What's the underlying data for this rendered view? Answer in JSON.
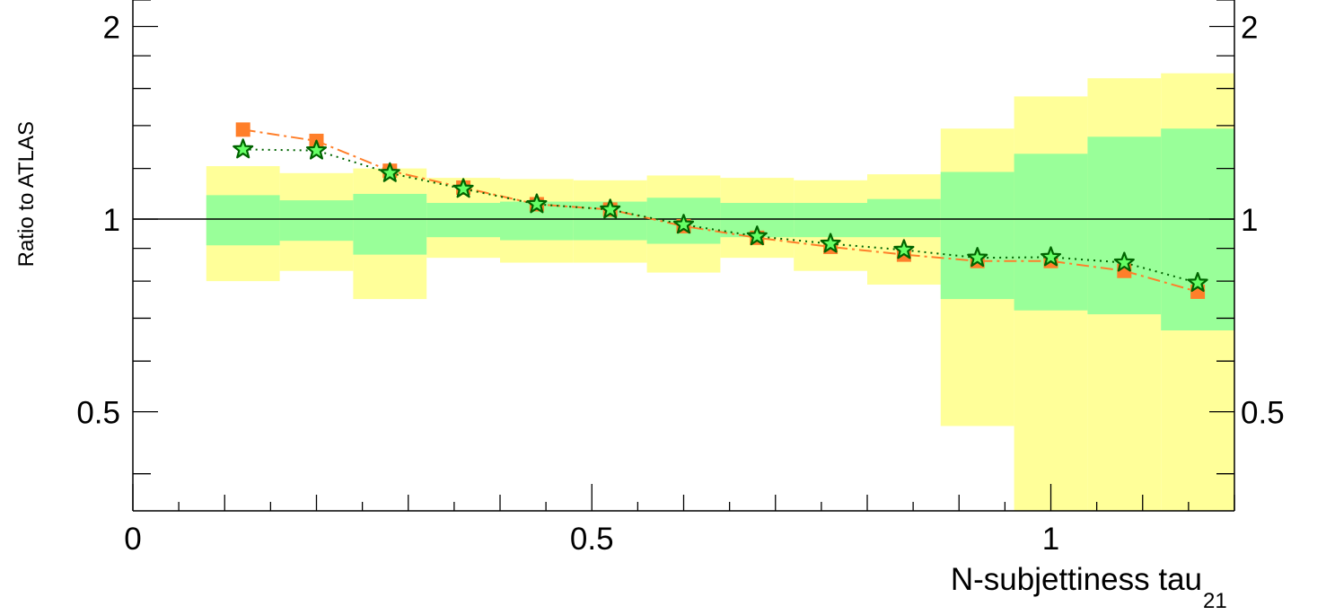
{
  "chart_data": {
    "type": "line",
    "xlabel": "N-subjettiness tau",
    "xlabel_subscript": "21",
    "ylabel": "Ratio to ATLAS",
    "xlim": [
      0,
      1.2
    ],
    "ylim": [
      0.35,
      2.2
    ],
    "y_scale": "log",
    "x_ticks": [
      {
        "value": 0,
        "label": "0"
      },
      {
        "value": 0.5,
        "label": "0.5"
      },
      {
        "value": 1,
        "label": "1"
      }
    ],
    "y_ticks": [
      {
        "value": 0.5,
        "label": "0.5"
      },
      {
        "value": 1,
        "label": "1"
      },
      {
        "value": 2,
        "label": "2"
      }
    ],
    "y_ticks_right": [
      {
        "value": 0.5,
        "label": "0.5"
      },
      {
        "value": 1,
        "label": "1"
      },
      {
        "value": 2,
        "label": "2"
      }
    ],
    "reference_line": 1,
    "grid": false,
    "bin_edges": [
      0.08,
      0.16,
      0.24,
      0.32,
      0.4,
      0.48,
      0.56,
      0.64,
      0.72,
      0.8,
      0.88,
      0.96,
      1.04,
      1.12,
      1.2
    ],
    "band_outer": {
      "color": "#ffff99",
      "low": [
        0.8,
        0.83,
        0.75,
        0.87,
        0.855,
        0.855,
        0.825,
        0.87,
        0.83,
        0.79,
        0.475,
        0.3,
        0.3,
        0.3
      ],
      "high": [
        1.21,
        1.18,
        1.2,
        1.16,
        1.155,
        1.15,
        1.17,
        1.16,
        1.15,
        1.175,
        1.385,
        1.555,
        1.66,
        1.69
      ]
    },
    "band_inner": {
      "color": "#99ff99",
      "low": [
        0.91,
        0.925,
        0.88,
        0.937,
        0.927,
        0.927,
        0.915,
        0.937,
        0.937,
        0.937,
        0.75,
        0.72,
        0.71,
        0.67
      ],
      "high": [
        1.09,
        1.07,
        1.095,
        1.06,
        1.065,
        1.065,
        1.08,
        1.06,
        1.06,
        1.075,
        1.185,
        1.265,
        1.345,
        1.385
      ]
    },
    "series": [
      {
        "marker": "square",
        "color": "#ff7f2a",
        "line_style": "dash-dot",
        "x": [
          0.12,
          0.2,
          0.28,
          0.36,
          0.44,
          0.52,
          0.6,
          0.68,
          0.76,
          0.84,
          0.92,
          1.0,
          1.08,
          1.16
        ],
        "y": [
          1.38,
          1.325,
          1.19,
          1.12,
          1.055,
          1.035,
          0.975,
          0.935,
          0.905,
          0.88,
          0.86,
          0.86,
          0.83,
          0.77
        ]
      },
      {
        "marker": "star",
        "color": "#006400",
        "fill": "#66ff66",
        "line_style": "dotted",
        "x": [
          0.12,
          0.2,
          0.28,
          0.36,
          0.44,
          0.52,
          0.6,
          0.68,
          0.76,
          0.84,
          0.92,
          1.0,
          1.08,
          1.16
        ],
        "y": [
          1.285,
          1.28,
          1.18,
          1.115,
          1.055,
          1.035,
          0.98,
          0.94,
          0.915,
          0.895,
          0.87,
          0.872,
          0.855,
          0.795
        ]
      }
    ]
  }
}
